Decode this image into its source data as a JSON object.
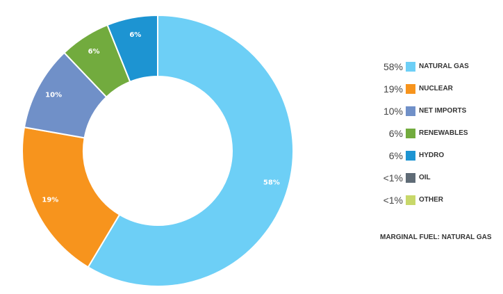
{
  "chart_data": {
    "type": "pie",
    "donut": true,
    "title": "",
    "categories": [
      "NATURAL GAS",
      "NUCLEAR",
      "NET IMPORTS",
      "RENEWABLES",
      "HYDRO",
      "OIL",
      "OTHER"
    ],
    "values": [
      58,
      19,
      10,
      6,
      6,
      0,
      0
    ],
    "slice_labels": [
      "58%",
      "19%",
      "10%",
      "6%",
      "6%",
      "",
      ""
    ],
    "legend_pct": [
      "58%",
      "19%",
      "10%",
      "6%",
      "6%",
      "<1%",
      "<1%"
    ],
    "colors": [
      "#6dcff6",
      "#f7941d",
      "#7090c8",
      "#72ab3e",
      "#1d94d2",
      "#5f6b76",
      "#c8d86a"
    ],
    "legend_position": "right"
  },
  "marginal_fuel": "MARGINAL FUEL: NATURAL GAS"
}
